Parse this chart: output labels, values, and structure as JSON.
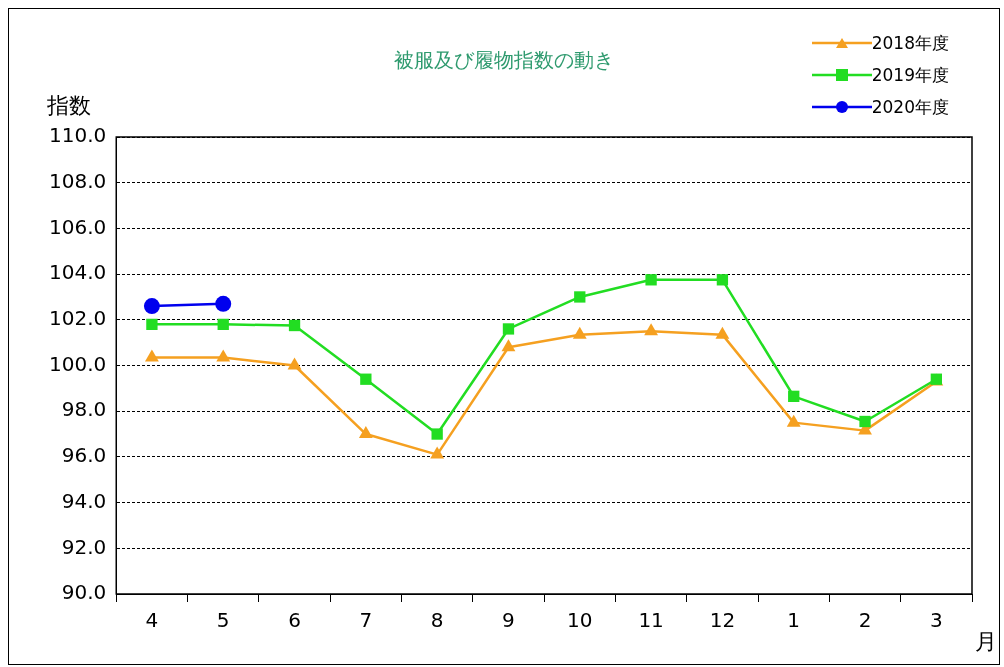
{
  "chart_data": {
    "type": "line",
    "title": "被服及び履物指数の動き",
    "ylabel": "指数",
    "xlabel": "月",
    "categories": [
      "4",
      "5",
      "6",
      "7",
      "8",
      "9",
      "10",
      "11",
      "12",
      "1",
      "2",
      "3"
    ],
    "series": [
      {
        "name": "2018年度",
        "color": "#f5a020",
        "marker": "triangle",
        "values": [
          100.35,
          100.35,
          100.0,
          97.0,
          96.1,
          100.8,
          101.35,
          101.5,
          101.35,
          97.5,
          97.15,
          99.3
        ]
      },
      {
        "name": "2019年度",
        "color": "#22dd22",
        "marker": "square",
        "values": [
          101.8,
          101.8,
          101.75,
          99.4,
          97.0,
          101.6,
          103.0,
          103.75,
          103.75,
          98.65,
          97.55,
          99.4
        ]
      },
      {
        "name": "2020年度",
        "color": "#0000ee",
        "marker": "circle",
        "values": [
          102.6,
          102.7,
          null,
          null,
          null,
          null,
          null,
          null,
          null,
          null,
          null,
          null
        ]
      }
    ],
    "ylim": [
      90,
      110
    ],
    "yticks": [
      {
        "value": 90,
        "label": "90.0"
      },
      {
        "value": 92,
        "label": "92.0"
      },
      {
        "value": 94,
        "label": "94.0"
      },
      {
        "value": 96,
        "label": "96.0"
      },
      {
        "value": 98,
        "label": "98.0"
      },
      {
        "value": 100,
        "label": "100.0"
      },
      {
        "value": 102,
        "label": "102.0"
      },
      {
        "value": 104,
        "label": "104.0"
      },
      {
        "value": 106,
        "label": "106.0"
      },
      {
        "value": 108,
        "label": "108.0"
      },
      {
        "value": 110,
        "label": "110.0"
      }
    ],
    "grid": "y",
    "legend": "top right",
    "line_style": "solid"
  }
}
